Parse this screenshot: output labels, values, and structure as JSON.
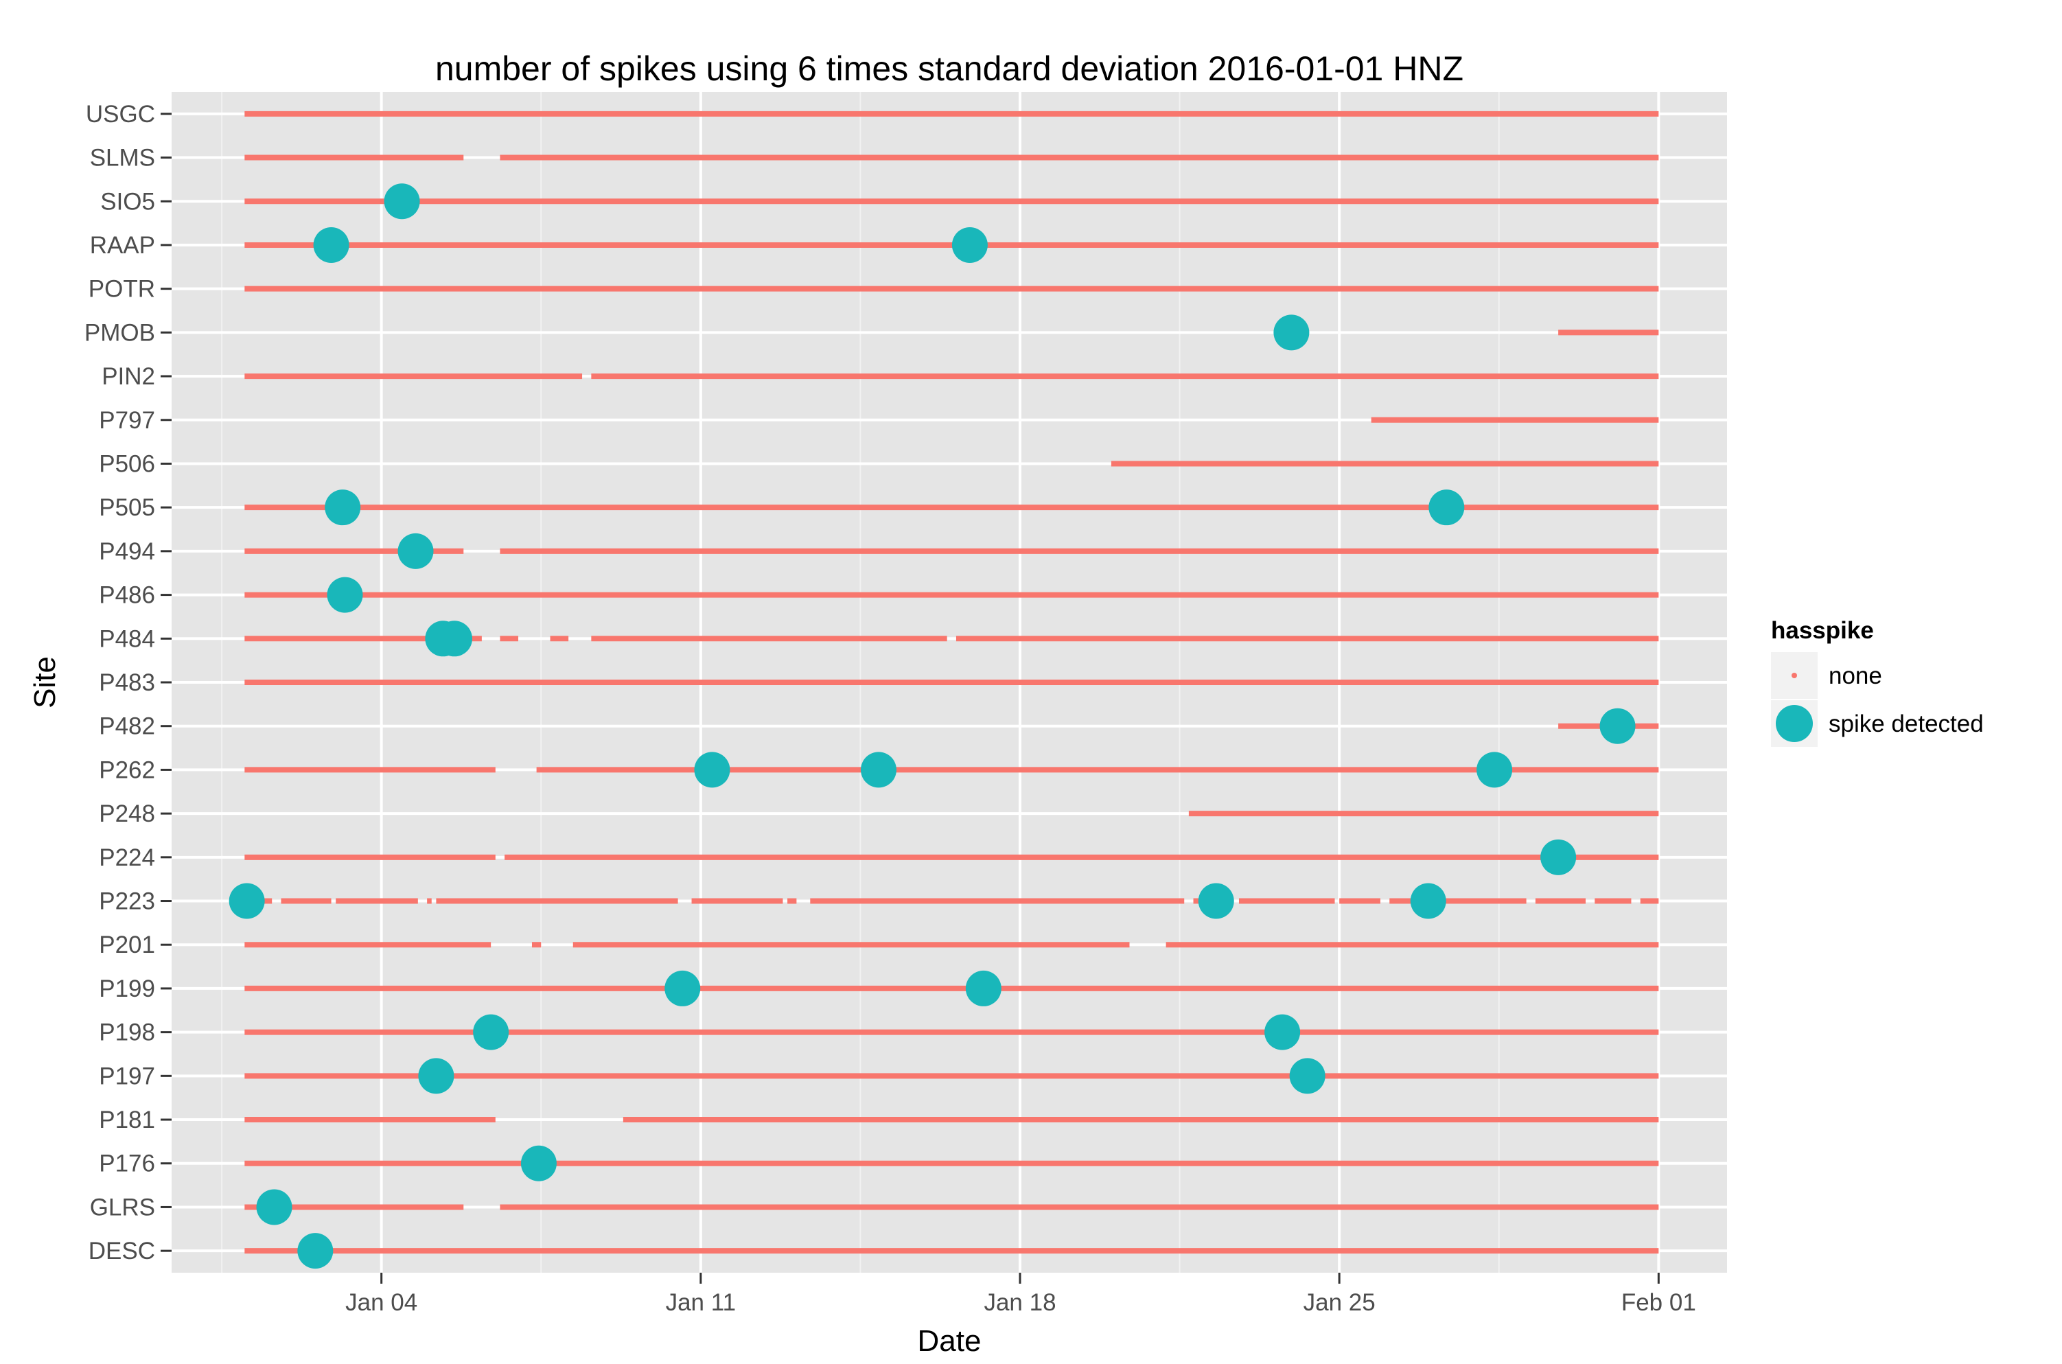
{
  "chart_data": {
    "type": "scatter",
    "title": "number of spikes using  6 times standard deviation 2016-01-01 HNZ",
    "xlabel": "Date",
    "ylabel": "Site",
    "x_unit": "days since 2016-01-01",
    "xlim": [
      -1.6,
      32.5
    ],
    "x_ticks": [
      {
        "value": 3,
        "label": "Jan 04"
      },
      {
        "value": 10,
        "label": "Jan 11"
      },
      {
        "value": 17,
        "label": "Jan 18"
      },
      {
        "value": 24,
        "label": "Jan 25"
      },
      {
        "value": 31,
        "label": "Feb 01"
      }
    ],
    "x_minor_ticks": [
      -0.5,
      6.5,
      13.5,
      20.5,
      27.5
    ],
    "grid": true,
    "legend": {
      "title": "hasspike",
      "position": "right",
      "entries": [
        {
          "label": "none",
          "color": "#F8766D",
          "shape": "small-dot"
        },
        {
          "label": "spike detected",
          "color": "#00BFC4",
          "shape": "large-dot"
        }
      ]
    },
    "colors": {
      "none": "#F8766D",
      "spike": "#19B7BA",
      "panel": "#E5E5E5",
      "grid_major": "#FFFFFF",
      "grid_minor": "#F2F2F2"
    },
    "sites": [
      {
        "name": "USGC",
        "coverage": [
          [
            0,
            31
          ]
        ],
        "spikes": []
      },
      {
        "name": "SLMS",
        "coverage": [
          [
            0,
            4.8
          ],
          [
            5.6,
            31
          ]
        ],
        "spikes": []
      },
      {
        "name": "SIO5",
        "coverage": [
          [
            0,
            31
          ]
        ],
        "spikes": [
          3.45
        ]
      },
      {
        "name": "RAAP",
        "coverage": [
          [
            0,
            31
          ]
        ],
        "spikes": [
          1.9,
          15.9
        ]
      },
      {
        "name": "POTR",
        "coverage": [
          [
            0,
            31
          ]
        ],
        "spikes": []
      },
      {
        "name": "PMOB",
        "coverage": [
          [
            28.8,
            31
          ]
        ],
        "spikes": [
          22.95
        ]
      },
      {
        "name": "PIN2",
        "coverage": [
          [
            0,
            7.4
          ],
          [
            7.6,
            31
          ]
        ],
        "spikes": []
      },
      {
        "name": "P797",
        "coverage": [
          [
            24.7,
            31
          ]
        ],
        "spikes": []
      },
      {
        "name": "P506",
        "coverage": [
          [
            19,
            31
          ]
        ],
        "spikes": []
      },
      {
        "name": "P505",
        "coverage": [
          [
            0,
            31
          ]
        ],
        "spikes": [
          2.15,
          26.35
        ]
      },
      {
        "name": "P494",
        "coverage": [
          [
            0,
            4.8
          ],
          [
            5.6,
            31
          ]
        ],
        "spikes": [
          3.75
        ]
      },
      {
        "name": "P486",
        "coverage": [
          [
            0,
            31
          ]
        ],
        "spikes": [
          2.2
        ]
      },
      {
        "name": "P484",
        "coverage": [
          [
            0,
            4.0
          ],
          [
            4.6,
            5.2
          ],
          [
            5.6,
            6.0
          ],
          [
            6.7,
            7.1
          ],
          [
            7.6,
            15.4
          ],
          [
            15.6,
            31
          ]
        ],
        "spikes": [
          4.35,
          4.6
        ]
      },
      {
        "name": "P483",
        "coverage": [
          [
            0,
            31
          ]
        ],
        "spikes": []
      },
      {
        "name": "P482",
        "coverage": [
          [
            28.8,
            31
          ]
        ],
        "spikes": [
          30.1
        ]
      },
      {
        "name": "P262",
        "coverage": [
          [
            0,
            5.5
          ],
          [
            6.4,
            31
          ]
        ],
        "spikes": [
          10.25,
          13.9,
          27.4
        ]
      },
      {
        "name": "P248",
        "coverage": [
          [
            20.7,
            31
          ]
        ],
        "spikes": []
      },
      {
        "name": "P224",
        "coverage": [
          [
            0,
            5.5
          ],
          [
            5.7,
            31
          ]
        ],
        "spikes": [
          28.8
        ]
      },
      {
        "name": "P223",
        "coverage": [
          [
            0,
            0.6
          ],
          [
            0.8,
            1.9
          ],
          [
            2.0,
            3.8
          ],
          [
            4.0,
            4.1
          ],
          [
            4.2,
            9.5
          ],
          [
            9.8,
            11.8
          ],
          [
            11.9,
            12.1
          ],
          [
            12.4,
            20.6
          ],
          [
            20.8,
            21.6
          ],
          [
            21.8,
            23.9
          ],
          [
            24.0,
            24.9
          ],
          [
            25.1,
            25.9
          ],
          [
            26.0,
            28.1
          ],
          [
            28.3,
            29.4
          ],
          [
            29.6,
            30.4
          ],
          [
            30.6,
            31
          ]
        ],
        "spikes": [
          0.05,
          21.3,
          25.95
        ]
      },
      {
        "name": "P201",
        "coverage": [
          [
            0,
            5.4
          ],
          [
            6.3,
            6.5
          ],
          [
            7.2,
            19.4
          ],
          [
            20.2,
            31
          ]
        ],
        "spikes": []
      },
      {
        "name": "P199",
        "coverage": [
          [
            0,
            31
          ]
        ],
        "spikes": [
          9.6,
          16.2
        ]
      },
      {
        "name": "P198",
        "coverage": [
          [
            0,
            31
          ]
        ],
        "spikes": [
          5.4,
          22.75
        ]
      },
      {
        "name": "P197",
        "coverage": [
          [
            0,
            31
          ]
        ],
        "spikes": [
          4.2,
          23.3
        ]
      },
      {
        "name": "P181",
        "coverage": [
          [
            0,
            5.5
          ],
          [
            8.3,
            31
          ]
        ],
        "spikes": []
      },
      {
        "name": "P176",
        "coverage": [
          [
            0,
            31
          ]
        ],
        "spikes": [
          6.45
        ]
      },
      {
        "name": "GLRS",
        "coverage": [
          [
            0,
            4.8
          ],
          [
            5.6,
            31
          ]
        ],
        "spikes": [
          0.65
        ]
      },
      {
        "name": "DESC",
        "coverage": [
          [
            0,
            31
          ]
        ],
        "spikes": [
          1.55
        ]
      }
    ]
  }
}
